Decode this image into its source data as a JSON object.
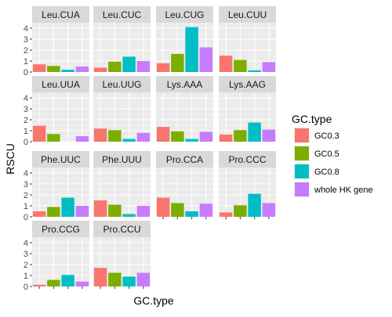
{
  "chart_data": {
    "type": "bar",
    "facet": "small-multiples",
    "xlabel": "GC.type",
    "ylabel": "RSCU",
    "ylim": [
      0,
      4.5
    ],
    "yticks": [
      0,
      1,
      2,
      3,
      4
    ],
    "grid": true,
    "legend": {
      "title": "GC.type",
      "placement": "right",
      "entries": [
        {
          "name": "GC0.3",
          "color": "#F8766D"
        },
        {
          "name": "GC0.5",
          "color": "#7CAE00"
        },
        {
          "name": "GC0.8",
          "color": "#00BFC4"
        },
        {
          "name": "whole HK gene",
          "color": "#C77CFF"
        }
      ]
    },
    "panels": [
      {
        "title": "Leu.CUA",
        "values": [
          0.7,
          0.55,
          0.2,
          0.5
        ]
      },
      {
        "title": "Leu.CUC",
        "values": [
          0.4,
          0.95,
          1.4,
          1.0
        ]
      },
      {
        "title": "Leu.CUG",
        "values": [
          0.8,
          1.65,
          4.1,
          2.25
        ]
      },
      {
        "title": "Leu.CUU",
        "values": [
          1.5,
          1.1,
          0.15,
          0.9
        ]
      },
      {
        "title": "Leu.UUA",
        "values": [
          1.45,
          0.7,
          0.0,
          0.5
        ]
      },
      {
        "title": "Leu.UUG",
        "values": [
          1.2,
          1.05,
          0.25,
          0.8
        ]
      },
      {
        "title": "Lys.AAA",
        "values": [
          1.35,
          0.95,
          0.25,
          0.9
        ]
      },
      {
        "title": "Lys.AAG",
        "values": [
          0.65,
          1.05,
          1.75,
          1.1
        ]
      },
      {
        "title": "Phe.UUC",
        "values": [
          0.5,
          0.9,
          1.75,
          1.0
        ]
      },
      {
        "title": "Phe.UUU",
        "values": [
          1.5,
          1.1,
          0.25,
          1.0
        ]
      },
      {
        "title": "Pro.CCA",
        "values": [
          1.75,
          1.25,
          0.5,
          1.2
        ]
      },
      {
        "title": "Pro.CCC",
        "values": [
          0.4,
          1.05,
          2.1,
          1.25
        ]
      },
      {
        "title": "Pro.CCG",
        "values": [
          0.15,
          0.6,
          1.05,
          0.45
        ]
      },
      {
        "title": "Pro.CCU",
        "values": [
          1.7,
          1.25,
          0.9,
          1.25
        ]
      }
    ]
  }
}
